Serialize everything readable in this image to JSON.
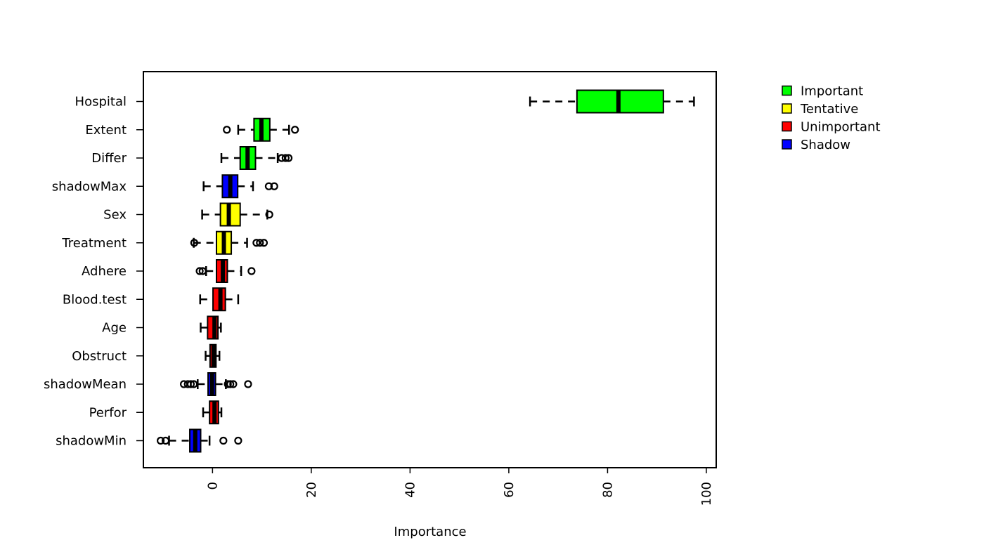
{
  "chart_data": {
    "type": "boxplot",
    "orientation": "horizontal",
    "title": "",
    "xlabel": "Importance",
    "ylabel": "",
    "xlim": [
      -14,
      102
    ],
    "xticks": [
      0,
      20,
      40,
      60,
      80,
      100
    ],
    "grid": false,
    "legend_position": "top-right outside plot",
    "legend": [
      {
        "label": "Important",
        "color": "#00ff00"
      },
      {
        "label": "Tentative",
        "color": "#ffff00"
      },
      {
        "label": "Unimportant",
        "color": "#ff0000"
      },
      {
        "label": "Shadow",
        "color": "#0000ff"
      }
    ],
    "series": [
      {
        "name": "Hospital",
        "decision": "Important",
        "whisker_low": 64.3,
        "q1": 73.8,
        "median": 82.2,
        "q3": 91.3,
        "whisker_high": 97.5,
        "outliers": []
      },
      {
        "name": "Extent",
        "decision": "Important",
        "whisker_low": 5.2,
        "q1": 8.4,
        "median": 9.9,
        "q3": 11.6,
        "whisker_high": 15.5,
        "outliers": [
          2.9,
          16.7
        ]
      },
      {
        "name": "Differ",
        "decision": "Important",
        "whisker_low": 1.8,
        "q1": 5.6,
        "median": 7.1,
        "q3": 8.7,
        "whisker_high": 13.2,
        "outliers": [
          14.0,
          14.8,
          15.4
        ]
      },
      {
        "name": "shadowMax",
        "decision": "Shadow",
        "whisker_low": -1.8,
        "q1": 2.0,
        "median": 3.6,
        "q3": 5.1,
        "whisker_high": 8.2,
        "outliers": [
          11.4,
          12.5
        ]
      },
      {
        "name": "Sex",
        "decision": "Tentative",
        "whisker_low": -2.1,
        "q1": 1.6,
        "median": 3.3,
        "q3": 5.6,
        "whisker_high": 11.1,
        "outliers": [
          11.5
        ]
      },
      {
        "name": "Treatment",
        "decision": "Tentative",
        "whisker_low": -3.8,
        "q1": 0.8,
        "median": 2.3,
        "q3": 3.8,
        "whisker_high": 7.0,
        "outliers": [
          -3.7,
          8.9,
          9.6,
          10.4
        ]
      },
      {
        "name": "Adhere",
        "decision": "Unimportant",
        "whisker_low": -1.3,
        "q1": 0.8,
        "median": 2.1,
        "q3": 3.0,
        "whisker_high": 5.8,
        "outliers": [
          -2.6,
          -2.0,
          7.9
        ]
      },
      {
        "name": "Blood.test",
        "decision": "Unimportant",
        "whisker_low": -2.5,
        "q1": 0.1,
        "median": 1.6,
        "q3": 2.6,
        "whisker_high": 5.2,
        "outliers": []
      },
      {
        "name": "Age",
        "decision": "Unimportant",
        "whisker_low": -2.4,
        "q1": -1.0,
        "median": 0.4,
        "q3": 1.1,
        "whisker_high": 1.7,
        "outliers": []
      },
      {
        "name": "Obstruct",
        "decision": "Unimportant",
        "whisker_low": -1.4,
        "q1": -0.5,
        "median": 0.2,
        "q3": 0.7,
        "whisker_high": 1.4,
        "outliers": []
      },
      {
        "name": "shadowMean",
        "decision": "Shadow",
        "whisker_low": -3.0,
        "q1": -0.9,
        "median": -0.1,
        "q3": 0.6,
        "whisker_high": 2.7,
        "outliers": [
          -5.8,
          -5.0,
          -4.4,
          -3.8,
          3.1,
          3.6,
          4.2,
          7.2
        ]
      },
      {
        "name": "Perfor",
        "decision": "Unimportant",
        "whisker_low": -1.9,
        "q1": -0.6,
        "median": 0.4,
        "q3": 1.2,
        "whisker_high": 1.8,
        "outliers": []
      },
      {
        "name": "shadowMin",
        "decision": "Shadow",
        "whisker_low": -8.8,
        "q1": -4.6,
        "median": -3.5,
        "q3": -2.4,
        "whisker_high": -0.6,
        "outliers": [
          -10.5,
          -9.5,
          2.2,
          5.2
        ]
      }
    ]
  }
}
